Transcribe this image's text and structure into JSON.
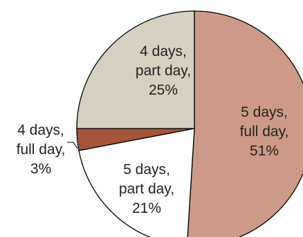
{
  "chart_data": {
    "type": "pie",
    "title": "",
    "slices": [
      {
        "label": "5 days, full day",
        "lines": [
          "5 days,",
          "full day,",
          "51%"
        ],
        "value": 51,
        "color": "#cc9a87"
      },
      {
        "label": "5 days, part day",
        "lines": [
          "5 days,",
          "part day,",
          "21%"
        ],
        "value": 21,
        "color": "#ffffff"
      },
      {
        "label": "4 days, full day",
        "lines": [
          "4 days,",
          "full day,",
          "3%"
        ],
        "value": 3,
        "color": "#a4553a"
      },
      {
        "label": "4 days, part day",
        "lines": [
          "4 days,",
          "part day,",
          "25%"
        ],
        "value": 25,
        "color": "#d6d0c0"
      }
    ],
    "start_angle": "12 o'clock",
    "direction": "clockwise",
    "legend": "none"
  }
}
